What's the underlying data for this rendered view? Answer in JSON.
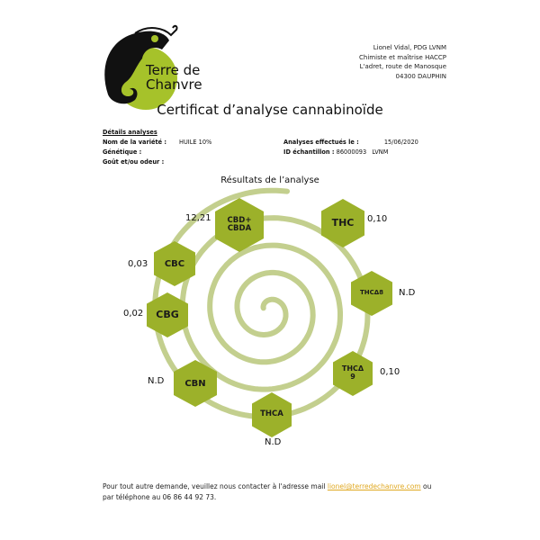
{
  "logo": {
    "line1": "Terre de",
    "line2": "Chanvre"
  },
  "address": [
    "Lionel Vidal, PDG LVNM",
    "Chimiste et maîtrise HACCP",
    "L'adret, route de Manosque",
    "04300 DAUPHIN"
  ],
  "title": "Certificat d’analyse cannabinoïde",
  "details": {
    "heading": "Détails analyses",
    "variety_label": "Nom de la variété :",
    "variety_value": "HUILE 10%",
    "genetics_label": "Génétique :",
    "taste_label": "Goût et/ou odeur :",
    "date_label": "Analyses effectués le :",
    "date_value": "15/06/2020",
    "id_label": "ID échantillon :",
    "id_value": "86000093",
    "id_suffix": "LVNM"
  },
  "results_title": "Résultats de l’analyse",
  "results": [
    {
      "name": "CBD+\nCBDA",
      "value": "12,21"
    },
    {
      "name": "THC",
      "value": "0,10"
    },
    {
      "name": "THCΔ8",
      "value": "N.D"
    },
    {
      "name": "THCΔ\n9",
      "value": "0,10"
    },
    {
      "name": "THCA",
      "value": "N.D"
    },
    {
      "name": "CBN",
      "value": "N.D"
    },
    {
      "name": "CBG",
      "value": "0,02"
    },
    {
      "name": "CBC",
      "value": "0,03"
    }
  ],
  "colors": {
    "hex_green": "#9cb12a",
    "spiral": "#c3cf8e",
    "link": "#e0a820"
  },
  "footer": {
    "text1": "Pour tout autre demande, veuillez nous contacter à l'adresse mail ",
    "email": "lionel@terredechanvre.com",
    "text2": " ou",
    "text3": "par téléphone au 06 86 44 92 73."
  }
}
